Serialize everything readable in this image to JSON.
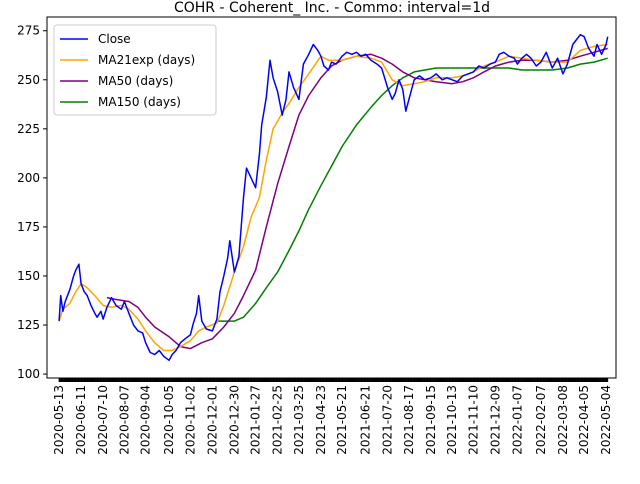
{
  "chart_data": {
    "type": "line",
    "title": "COHR - Coherent_ Inc. - Commo: interval=1d",
    "xlabel": "",
    "ylabel": "",
    "ylim": [
      98,
      282
    ],
    "xlim": [
      "2020-04-27",
      "2022-05-17"
    ],
    "y_ticks": [
      100,
      125,
      150,
      175,
      200,
      225,
      250,
      275
    ],
    "x_tick_labels": [
      "2020-05-13",
      "2020-06-11",
      "2020-07-10",
      "2020-08-07",
      "2020-09-04",
      "2020-10-05",
      "2020-11-02",
      "2020-12-01",
      "2020-12-30",
      "2021-01-27",
      "2021-02-25",
      "2021-03-25",
      "2021-04-23",
      "2021-05-21",
      "2021-06-21",
      "2021-07-20",
      "2021-08-17",
      "2021-09-15",
      "2021-10-13",
      "2021-11-10",
      "2021-12-09",
      "2022-01-07",
      "2022-02-07",
      "2022-03-08",
      "2022-04-05",
      "2022-05-04"
    ],
    "grid": false,
    "legend": "upper left",
    "series": [
      {
        "name": "Close",
        "color": "#0000ff",
        "points": [
          [
            "2020-05-13",
            127
          ],
          [
            "2020-05-15",
            140
          ],
          [
            "2020-05-18",
            132
          ],
          [
            "2020-05-21",
            137
          ],
          [
            "2020-05-27",
            143
          ],
          [
            "2020-06-01",
            150
          ],
          [
            "2020-06-04",
            153
          ],
          [
            "2020-06-08",
            156
          ],
          [
            "2020-06-11",
            146
          ],
          [
            "2020-06-15",
            142
          ],
          [
            "2020-06-19",
            140
          ],
          [
            "2020-06-24",
            135
          ],
          [
            "2020-06-29",
            131
          ],
          [
            "2020-07-02",
            129
          ],
          [
            "2020-07-07",
            132
          ],
          [
            "2020-07-10",
            128
          ],
          [
            "2020-07-15",
            134
          ],
          [
            "2020-07-21",
            139
          ],
          [
            "2020-07-27",
            135
          ],
          [
            "2020-08-03",
            133
          ],
          [
            "2020-08-07",
            137
          ],
          [
            "2020-08-13",
            131
          ],
          [
            "2020-08-19",
            125
          ],
          [
            "2020-08-25",
            122
          ],
          [
            "2020-08-31",
            121
          ],
          [
            "2020-09-04",
            116
          ],
          [
            "2020-09-10",
            111
          ],
          [
            "2020-09-16",
            110
          ],
          [
            "2020-09-22",
            112
          ],
          [
            "2020-09-28",
            109
          ],
          [
            "2020-10-05",
            107
          ],
          [
            "2020-10-09",
            110
          ],
          [
            "2020-10-14",
            112
          ],
          [
            "2020-10-20",
            116
          ],
          [
            "2020-10-26",
            118
          ],
          [
            "2020-11-02",
            120
          ],
          [
            "2020-11-06",
            126
          ],
          [
            "2020-11-10",
            131
          ],
          [
            "2020-11-13",
            140
          ],
          [
            "2020-11-17",
            127
          ],
          [
            "2020-11-23",
            123
          ],
          [
            "2020-12-01",
            122
          ],
          [
            "2020-12-07",
            128
          ],
          [
            "2020-12-11",
            142
          ],
          [
            "2020-12-16",
            150
          ],
          [
            "2020-12-21",
            159
          ],
          [
            "2020-12-24",
            168
          ],
          [
            "2020-12-30",
            152
          ],
          [
            "2021-01-05",
            160
          ],
          [
            "2021-01-11",
            190
          ],
          [
            "2021-01-15",
            205
          ],
          [
            "2021-01-21",
            200
          ],
          [
            "2021-01-27",
            195
          ],
          [
            "2021-02-01",
            212
          ],
          [
            "2021-02-04",
            227
          ],
          [
            "2021-02-10",
            241
          ],
          [
            "2021-02-15",
            260
          ],
          [
            "2021-02-19",
            251
          ],
          [
            "2021-02-25",
            244
          ],
          [
            "2021-03-03",
            232
          ],
          [
            "2021-03-08",
            240
          ],
          [
            "2021-03-12",
            254
          ],
          [
            "2021-03-18",
            246
          ],
          [
            "2021-03-25",
            240
          ],
          [
            "2021-03-31",
            258
          ],
          [
            "2021-04-07",
            263
          ],
          [
            "2021-04-13",
            268
          ],
          [
            "2021-04-19",
            265
          ],
          [
            "2021-04-23",
            262
          ],
          [
            "2021-04-27",
            257
          ],
          [
            "2021-05-03",
            255
          ],
          [
            "2021-05-07",
            259
          ],
          [
            "2021-05-13",
            258
          ],
          [
            "2021-05-21",
            262
          ],
          [
            "2021-05-27",
            264
          ],
          [
            "2021-06-03",
            263
          ],
          [
            "2021-06-09",
            264
          ],
          [
            "2021-06-15",
            262
          ],
          [
            "2021-06-21",
            263
          ],
          [
            "2021-06-28",
            260
          ],
          [
            "2021-07-06",
            258
          ],
          [
            "2021-07-12",
            256
          ],
          [
            "2021-07-20",
            246
          ],
          [
            "2021-07-26",
            240
          ],
          [
            "2021-07-30",
            243
          ],
          [
            "2021-08-04",
            250
          ],
          [
            "2021-08-09",
            245
          ],
          [
            "2021-08-13",
            234
          ],
          [
            "2021-08-17",
            240
          ],
          [
            "2021-08-24",
            250
          ],
          [
            "2021-08-31",
            252
          ],
          [
            "2021-09-07",
            250
          ],
          [
            "2021-09-15",
            251
          ],
          [
            "2021-09-22",
            253
          ],
          [
            "2021-09-30",
            250
          ],
          [
            "2021-10-06",
            251
          ],
          [
            "2021-10-13",
            250
          ],
          [
            "2021-10-20",
            249
          ],
          [
            "2021-10-27",
            252
          ],
          [
            "2021-11-03",
            253
          ],
          [
            "2021-11-10",
            254
          ],
          [
            "2021-11-17",
            257
          ],
          [
            "2021-11-24",
            256
          ],
          [
            "2021-12-02",
            258
          ],
          [
            "2021-12-09",
            259
          ],
          [
            "2021-12-14",
            263
          ],
          [
            "2021-12-20",
            264
          ],
          [
            "2021-12-27",
            262
          ],
          [
            "2022-01-03",
            261
          ],
          [
            "2022-01-07",
            258
          ],
          [
            "2022-01-13",
            261
          ],
          [
            "2022-01-19",
            263
          ],
          [
            "2022-01-25",
            261
          ],
          [
            "2022-02-01",
            257
          ],
          [
            "2022-02-07",
            259
          ],
          [
            "2022-02-14",
            264
          ],
          [
            "2022-02-22",
            256
          ],
          [
            "2022-03-01",
            261
          ],
          [
            "2022-03-08",
            253
          ],
          [
            "2022-03-14",
            258
          ],
          [
            "2022-03-21",
            268
          ],
          [
            "2022-03-25",
            270
          ],
          [
            "2022-03-31",
            273
          ],
          [
            "2022-04-05",
            272
          ],
          [
            "2022-04-11",
            266
          ],
          [
            "2022-04-18",
            262
          ],
          [
            "2022-04-22",
            268
          ],
          [
            "2022-04-28",
            263
          ],
          [
            "2022-05-04",
            268
          ],
          [
            "2022-05-06",
            272
          ]
        ]
      },
      {
        "name": "MA21exp (days)",
        "color": "#ffa500",
        "points": [
          [
            "2020-05-13",
            127
          ],
          [
            "2020-05-18",
            133
          ],
          [
            "2020-05-27",
            136
          ],
          [
            "2020-06-04",
            142
          ],
          [
            "2020-06-11",
            146
          ],
          [
            "2020-06-19",
            144
          ],
          [
            "2020-06-29",
            140
          ],
          [
            "2020-07-10",
            135
          ],
          [
            "2020-07-21",
            134
          ],
          [
            "2020-08-03",
            135
          ],
          [
            "2020-08-13",
            133
          ],
          [
            "2020-08-25",
            128
          ],
          [
            "2020-09-04",
            122
          ],
          [
            "2020-09-16",
            116
          ],
          [
            "2020-09-28",
            112
          ],
          [
            "2020-10-09",
            112
          ],
          [
            "2020-10-20",
            114
          ],
          [
            "2020-11-02",
            117
          ],
          [
            "2020-11-13",
            122
          ],
          [
            "2020-11-23",
            124
          ],
          [
            "2020-12-07",
            126
          ],
          [
            "2020-12-16",
            135
          ],
          [
            "2020-12-30",
            152
          ],
          [
            "2021-01-11",
            165
          ],
          [
            "2021-01-21",
            180
          ],
          [
            "2021-02-01",
            190
          ],
          [
            "2021-02-10",
            209
          ],
          [
            "2021-02-19",
            225
          ],
          [
            "2021-03-03",
            233
          ],
          [
            "2021-03-12",
            238
          ],
          [
            "2021-03-25",
            246
          ],
          [
            "2021-04-07",
            253
          ],
          [
            "2021-04-23",
            262
          ],
          [
            "2021-05-03",
            260
          ],
          [
            "2021-05-21",
            260
          ],
          [
            "2021-06-09",
            262
          ],
          [
            "2021-06-28",
            261
          ],
          [
            "2021-07-12",
            259
          ],
          [
            "2021-07-26",
            250
          ],
          [
            "2021-08-09",
            247
          ],
          [
            "2021-08-24",
            248
          ],
          [
            "2021-09-07",
            249
          ],
          [
            "2021-09-22",
            251
          ],
          [
            "2021-10-13",
            251
          ],
          [
            "2021-10-27",
            252
          ],
          [
            "2021-11-10",
            254
          ],
          [
            "2021-11-24",
            257
          ],
          [
            "2021-12-09",
            259
          ],
          [
            "2021-12-27",
            262
          ],
          [
            "2022-01-13",
            261
          ],
          [
            "2022-02-01",
            260
          ],
          [
            "2022-02-22",
            259
          ],
          [
            "2022-03-14",
            259
          ],
          [
            "2022-03-31",
            265
          ],
          [
            "2022-04-18",
            267
          ],
          [
            "2022-05-06",
            268
          ]
        ]
      },
      {
        "name": "MA50 (days)",
        "color": "#800080",
        "points": [
          [
            "2020-07-15",
            139
          ],
          [
            "2020-07-27",
            138
          ],
          [
            "2020-08-13",
            137
          ],
          [
            "2020-08-25",
            134
          ],
          [
            "2020-09-04",
            129
          ],
          [
            "2020-09-16",
            124
          ],
          [
            "2020-10-05",
            119
          ],
          [
            "2020-10-20",
            114
          ],
          [
            "2020-11-02",
            113
          ],
          [
            "2020-11-17",
            116
          ],
          [
            "2020-12-01",
            118
          ],
          [
            "2020-12-16",
            124
          ],
          [
            "2020-12-30",
            131
          ],
          [
            "2021-01-11",
            140
          ],
          [
            "2021-01-27",
            153
          ],
          [
            "2021-02-10",
            175
          ],
          [
            "2021-02-25",
            197
          ],
          [
            "2021-03-12",
            216
          ],
          [
            "2021-03-25",
            232
          ],
          [
            "2021-04-07",
            242
          ],
          [
            "2021-04-23",
            251
          ],
          [
            "2021-05-07",
            257
          ],
          [
            "2021-05-21",
            260
          ],
          [
            "2021-06-09",
            262
          ],
          [
            "2021-06-28",
            263
          ],
          [
            "2021-07-12",
            261
          ],
          [
            "2021-07-26",
            258
          ],
          [
            "2021-08-09",
            254
          ],
          [
            "2021-08-24",
            251
          ],
          [
            "2021-09-07",
            250
          ],
          [
            "2021-09-22",
            249
          ],
          [
            "2021-10-13",
            248
          ],
          [
            "2021-10-27",
            249
          ],
          [
            "2021-11-10",
            251
          ],
          [
            "2021-11-24",
            254
          ],
          [
            "2021-12-09",
            257
          ],
          [
            "2021-12-27",
            259
          ],
          [
            "2022-01-13",
            260
          ],
          [
            "2022-02-01",
            260
          ],
          [
            "2022-02-22",
            259
          ],
          [
            "2022-03-14",
            260
          ],
          [
            "2022-03-31",
            262
          ],
          [
            "2022-04-18",
            264
          ],
          [
            "2022-05-06",
            266
          ]
        ]
      },
      {
        "name": "MA150 (days)",
        "color": "#008000",
        "points": [
          [
            "2020-12-07",
            127
          ],
          [
            "2020-12-30",
            127
          ],
          [
            "2021-01-11",
            129
          ],
          [
            "2021-01-27",
            136
          ],
          [
            "2021-02-10",
            144
          ],
          [
            "2021-02-25",
            152
          ],
          [
            "2021-03-12",
            163
          ],
          [
            "2021-03-25",
            173
          ],
          [
            "2021-04-07",
            184
          ],
          [
            "2021-04-23",
            196
          ],
          [
            "2021-05-07",
            206
          ],
          [
            "2021-05-21",
            216
          ],
          [
            "2021-06-09",
            227
          ],
          [
            "2021-06-28",
            236
          ],
          [
            "2021-07-12",
            242
          ],
          [
            "2021-07-26",
            247
          ],
          [
            "2021-08-09",
            251
          ],
          [
            "2021-08-24",
            254
          ],
          [
            "2021-09-07",
            255
          ],
          [
            "2021-09-22",
            256
          ],
          [
            "2021-10-13",
            256
          ],
          [
            "2021-10-27",
            256
          ],
          [
            "2021-11-10",
            256
          ],
          [
            "2021-11-24",
            256
          ],
          [
            "2021-12-09",
            256
          ],
          [
            "2021-12-27",
            256
          ],
          [
            "2022-01-13",
            255
          ],
          [
            "2022-02-01",
            255
          ],
          [
            "2022-02-22",
            255
          ],
          [
            "2022-03-14",
            256
          ],
          [
            "2022-03-31",
            258
          ],
          [
            "2022-04-18",
            259
          ],
          [
            "2022-05-06",
            261
          ]
        ]
      }
    ]
  }
}
